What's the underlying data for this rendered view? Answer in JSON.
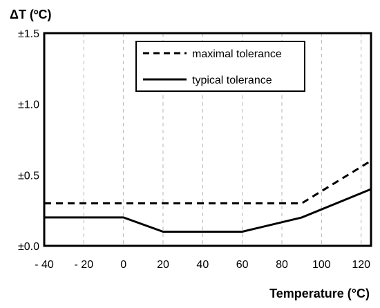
{
  "chart_data": {
    "type": "line",
    "xlabel": "Temperature (°C)",
    "ylabel": "ΔT (ºC)",
    "xlim": [
      -40,
      125
    ],
    "ylim": [
      0,
      1.5
    ],
    "x_ticks": [
      -40,
      -20,
      0,
      20,
      40,
      60,
      80,
      100,
      120
    ],
    "x_tick_labels": [
      "- 40",
      "- 20",
      "0",
      "20",
      "40",
      "60",
      "80",
      "100",
      "120"
    ],
    "y_ticks": [
      0,
      0.5,
      1.0,
      1.5
    ],
    "y_tick_labels": [
      "±0.0",
      "±0.5",
      "±1.0",
      "±1.5"
    ],
    "grid": "vertical dashed",
    "legend_position": "top-right",
    "series": [
      {
        "name": "maximal tolerance",
        "style": "dashed",
        "color": "#000000",
        "points": [
          [
            -40,
            0.3
          ],
          [
            90,
            0.3
          ],
          [
            125,
            0.6
          ]
        ]
      },
      {
        "name": "typical tolerance",
        "style": "solid",
        "color": "#000000",
        "points": [
          [
            -40,
            0.2
          ],
          [
            0,
            0.2
          ],
          [
            20,
            0.1
          ],
          [
            60,
            0.1
          ],
          [
            90,
            0.2
          ],
          [
            125,
            0.4
          ]
        ]
      }
    ]
  }
}
